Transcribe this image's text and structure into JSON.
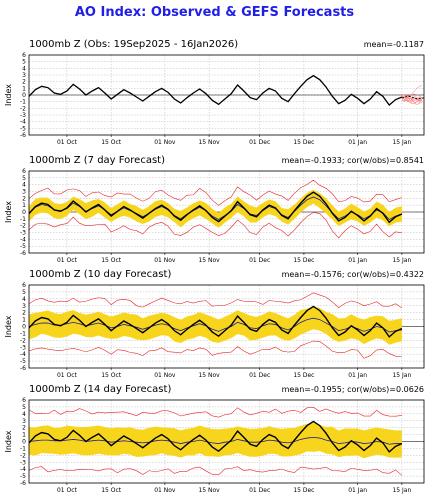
{
  "title": "AO Index: Observed & GEFS Forecasts",
  "colors": {
    "title": "#1f1fe6",
    "observed": "#000000",
    "spread": "#f7d51d",
    "bounds": "#e8242a",
    "members": "#ff6a6a",
    "mean": "#1f1f8f"
  },
  "chart_data": [
    {
      "type": "line",
      "panel_title": "1000mb Z (Obs: 19Sep2025 - 16Jan2026)",
      "stats": "mean=-0.1187",
      "ylabel": "Index",
      "ylim": [
        -6,
        6
      ],
      "yticks": [
        "6",
        "5",
        "4",
        "3",
        "2",
        "1",
        "0",
        "-1",
        "-2",
        "-3",
        "-4",
        "-5",
        "-6"
      ],
      "xlim": [
        0,
        125
      ],
      "xticks": [
        {
          "x": 12,
          "label": "01 Oct"
        },
        {
          "x": 26,
          "label": "15 Oct"
        },
        {
          "x": 43,
          "label": "01 Nov"
        },
        {
          "x": 57,
          "label": "15 Nov"
        },
        {
          "x": 73,
          "label": "01 Dec"
        },
        {
          "x": 87,
          "label": "15 Dec"
        },
        {
          "x": 104,
          "label": "01 Jan"
        },
        {
          "x": 118,
          "label": "15 Jan"
        }
      ],
      "grid": true,
      "observed": {
        "name": "observed",
        "x": [
          0,
          2,
          4,
          6,
          8,
          10,
          12,
          14,
          16,
          18,
          20,
          22,
          24,
          26,
          28,
          30,
          32,
          34,
          36,
          38,
          40,
          42,
          44,
          46,
          48,
          50,
          52,
          54,
          56,
          58,
          60,
          62,
          64,
          66,
          68,
          70,
          72,
          74,
          76,
          78,
          80,
          82,
          84,
          86,
          88,
          90,
          92,
          94,
          96,
          98,
          100,
          102,
          104,
          106,
          108,
          110,
          112,
          114,
          116,
          118
        ],
        "y": [
          -0.2,
          0.8,
          1.3,
          1.1,
          0.3,
          0.1,
          0.6,
          1.6,
          0.9,
          0.0,
          0.6,
          1.1,
          0.3,
          -0.6,
          0.1,
          0.8,
          0.3,
          -0.3,
          -0.9,
          -0.2,
          0.5,
          1.0,
          0.4,
          -0.6,
          -1.2,
          -0.4,
          0.3,
          0.9,
          0.2,
          -0.8,
          -1.4,
          -0.6,
          0.2,
          1.5,
          0.6,
          -0.4,
          -0.7,
          0.3,
          1.0,
          0.6,
          -0.5,
          -1.0,
          0.2,
          1.3,
          2.3,
          2.9,
          2.3,
          1.2,
          -0.2,
          -1.3,
          -0.8,
          0.1,
          -0.5,
          -1.3,
          -0.6,
          0.5,
          -0.2,
          -1.5,
          -0.7,
          -0.3
        ]
      },
      "forecast_members": {
        "name": "GEFS members",
        "x_start": 118,
        "x_end": 125,
        "spread": 1.8,
        "count": 10
      }
    },
    {
      "type": "line",
      "panel_title": "1000mb Z (7 day Forecast)",
      "stats": "mean=-0.1933; cor(w/obs)=0.8541",
      "ylabel": "Index",
      "ylim": [
        -6,
        6
      ],
      "yticks": [
        "6",
        "5",
        "4",
        "3",
        "2",
        "1",
        "0",
        "-1",
        "-2",
        "-3",
        "-4",
        "-5",
        "-6"
      ],
      "xlim": [
        0,
        125
      ],
      "xticks": [
        {
          "x": 12,
          "label": "01 Oct"
        },
        {
          "x": 26,
          "label": "15 Oct"
        },
        {
          "x": 43,
          "label": "01 Nov"
        },
        {
          "x": 57,
          "label": "15 Nov"
        },
        {
          "x": 73,
          "label": "01 Dec"
        },
        {
          "x": 87,
          "label": "15 Dec"
        },
        {
          "x": 104,
          "label": "01 Jan"
        },
        {
          "x": 118,
          "label": "15 Jan"
        }
      ],
      "grid": true,
      "x": [
        0,
        2,
        4,
        6,
        8,
        10,
        12,
        14,
        16,
        18,
        20,
        22,
        24,
        26,
        28,
        30,
        32,
        34,
        36,
        38,
        40,
        42,
        44,
        46,
        48,
        50,
        52,
        54,
        56,
        58,
        60,
        62,
        64,
        66,
        68,
        70,
        72,
        74,
        76,
        78,
        80,
        82,
        84,
        86,
        88,
        90,
        92,
        94,
        96,
        98,
        100,
        102,
        104,
        106,
        108,
        110,
        112,
        114,
        116,
        118
      ],
      "observed": [
        -0.2,
        0.8,
        1.3,
        1.1,
        0.3,
        0.1,
        0.6,
        1.6,
        0.9,
        0.0,
        0.6,
        1.1,
        0.3,
        -0.6,
        0.1,
        0.8,
        0.3,
        -0.3,
        -0.9,
        -0.2,
        0.5,
        1.0,
        0.4,
        -0.6,
        -1.2,
        -0.4,
        0.3,
        0.9,
        0.2,
        -0.8,
        -1.4,
        -0.6,
        0.2,
        1.5,
        0.6,
        -0.4,
        -0.7,
        0.3,
        1.0,
        0.6,
        -0.5,
        -1.0,
        0.2,
        1.3,
        2.3,
        2.9,
        2.3,
        1.2,
        -0.2,
        -1.3,
        -0.8,
        0.1,
        -0.5,
        -1.3,
        -0.6,
        0.5,
        -0.2,
        -1.5,
        -0.7,
        -0.3
      ],
      "forecast_mean": [
        -0.3,
        0.7,
        1.1,
        0.9,
        0.3,
        0.2,
        0.5,
        1.3,
        0.8,
        0.1,
        0.5,
        0.9,
        0.3,
        -0.4,
        0.1,
        0.6,
        0.2,
        -0.2,
        -0.7,
        -0.2,
        0.4,
        0.8,
        0.3,
        -0.5,
        -1.0,
        -0.3,
        0.2,
        0.7,
        0.2,
        -0.6,
        -1.1,
        -0.5,
        0.1,
        1.1,
        0.5,
        -0.3,
        -0.5,
        0.2,
        0.8,
        0.5,
        -0.4,
        -0.8,
        0.1,
        1.0,
        1.8,
        2.2,
        1.8,
        0.9,
        -0.1,
        -1.0,
        -0.6,
        0.0,
        -0.4,
        -1.0,
        -0.5,
        0.3,
        -0.1,
        -1.1,
        -0.6,
        -0.3
      ],
      "spread_halfwidth": 1.1,
      "bounds_halfwidth": 2.4
    },
    {
      "type": "line",
      "panel_title": "1000mb Z (10 day Forecast)",
      "stats": "mean=-0.1576; cor(w/obs)=0.4322",
      "ylabel": "Index",
      "ylim": [
        -6,
        6
      ],
      "yticks": [
        "6",
        "5",
        "4",
        "3",
        "2",
        "1",
        "0",
        "-1",
        "-2",
        "-3",
        "-4",
        "-5",
        "-6"
      ],
      "xlim": [
        0,
        125
      ],
      "xticks": [
        {
          "x": 12,
          "label": "01 Oct"
        },
        {
          "x": 26,
          "label": "15 Oct"
        },
        {
          "x": 43,
          "label": "01 Nov"
        },
        {
          "x": 57,
          "label": "15 Nov"
        },
        {
          "x": 73,
          "label": "01 Dec"
        },
        {
          "x": 87,
          "label": "15 Dec"
        },
        {
          "x": 104,
          "label": "01 Jan"
        },
        {
          "x": 118,
          "label": "15 Jan"
        }
      ],
      "grid": true,
      "x": [
        0,
        2,
        4,
        6,
        8,
        10,
        12,
        14,
        16,
        18,
        20,
        22,
        24,
        26,
        28,
        30,
        32,
        34,
        36,
        38,
        40,
        42,
        44,
        46,
        48,
        50,
        52,
        54,
        56,
        58,
        60,
        62,
        64,
        66,
        68,
        70,
        72,
        74,
        76,
        78,
        80,
        82,
        84,
        86,
        88,
        90,
        92,
        94,
        96,
        98,
        100,
        102,
        104,
        106,
        108,
        110,
        112,
        114,
        116,
        118
      ],
      "observed": [
        -0.2,
        0.8,
        1.3,
        1.1,
        0.3,
        0.1,
        0.6,
        1.6,
        0.9,
        0.0,
        0.6,
        1.1,
        0.3,
        -0.6,
        0.1,
        0.8,
        0.3,
        -0.3,
        -0.9,
        -0.2,
        0.5,
        1.0,
        0.4,
        -0.6,
        -1.2,
        -0.4,
        0.3,
        0.9,
        0.2,
        -0.8,
        -1.4,
        -0.6,
        0.2,
        1.5,
        0.6,
        -0.4,
        -0.7,
        0.3,
        1.0,
        0.6,
        -0.5,
        -1.0,
        0.2,
        1.3,
        2.3,
        2.9,
        2.3,
        1.2,
        -0.2,
        -1.3,
        -0.8,
        0.1,
        -0.5,
        -1.3,
        -0.6,
        0.5,
        -0.2,
        -1.5,
        -0.7,
        -0.3
      ],
      "forecast_mean": [
        0.0,
        0.3,
        0.5,
        0.5,
        0.2,
        0.2,
        0.4,
        0.6,
        0.4,
        0.1,
        0.3,
        0.5,
        0.2,
        -0.2,
        0.0,
        0.3,
        0.1,
        -0.1,
        -0.4,
        -0.1,
        0.2,
        0.4,
        0.2,
        -0.3,
        -0.6,
        -0.2,
        0.1,
        0.4,
        0.1,
        -0.4,
        -0.7,
        -0.3,
        0.0,
        0.6,
        0.3,
        -0.2,
        -0.3,
        0.1,
        0.4,
        0.3,
        -0.2,
        -0.5,
        0.0,
        0.6,
        1.0,
        1.2,
        1.0,
        0.5,
        0.0,
        -0.6,
        -0.4,
        0.0,
        -0.3,
        -0.7,
        -0.4,
        0.0,
        -0.2,
        -0.8,
        -0.6,
        -0.5
      ],
      "spread_halfwidth": 1.7,
      "bounds_halfwidth": 3.5
    },
    {
      "type": "line",
      "panel_title": "1000mb Z (14 day Forecast)",
      "stats": "mean=-0.1955; cor(w/obs)=0.0626",
      "ylabel": "Index",
      "ylim": [
        -6,
        6
      ],
      "yticks": [
        "6",
        "5",
        "4",
        "3",
        "2",
        "1",
        "0",
        "-1",
        "-2",
        "-3",
        "-4",
        "-5",
        "-6"
      ],
      "xlim": [
        0,
        125
      ],
      "xticks": [
        {
          "x": 12,
          "label": "01 Oct"
        },
        {
          "x": 26,
          "label": "15 Oct"
        },
        {
          "x": 43,
          "label": "01 Nov"
        },
        {
          "x": 57,
          "label": "15 Nov"
        },
        {
          "x": 73,
          "label": "01 Dec"
        },
        {
          "x": 87,
          "label": "15 Dec"
        },
        {
          "x": 104,
          "label": "01 Jan"
        },
        {
          "x": 118,
          "label": "15 Jan"
        }
      ],
      "grid": true,
      "x": [
        0,
        2,
        4,
        6,
        8,
        10,
        12,
        14,
        16,
        18,
        20,
        22,
        24,
        26,
        28,
        30,
        32,
        34,
        36,
        38,
        40,
        42,
        44,
        46,
        48,
        50,
        52,
        54,
        56,
        58,
        60,
        62,
        64,
        66,
        68,
        70,
        72,
        74,
        76,
        78,
        80,
        82,
        84,
        86,
        88,
        90,
        92,
        94,
        96,
        98,
        100,
        102,
        104,
        106,
        108,
        110,
        112,
        114,
        116,
        118
      ],
      "observed": [
        -0.2,
        0.8,
        1.3,
        1.1,
        0.3,
        0.1,
        0.6,
        1.6,
        0.9,
        0.0,
        0.6,
        1.1,
        0.3,
        -0.6,
        0.1,
        0.8,
        0.3,
        -0.3,
        -0.9,
        -0.2,
        0.5,
        1.0,
        0.4,
        -0.6,
        -1.2,
        -0.4,
        0.3,
        0.9,
        0.2,
        -0.8,
        -1.4,
        -0.6,
        0.2,
        1.5,
        0.6,
        -0.4,
        -0.7,
        0.3,
        1.0,
        0.6,
        -0.5,
        -1.0,
        0.2,
        1.3,
        2.3,
        2.9,
        2.3,
        1.2,
        -0.2,
        -1.3,
        -0.8,
        0.1,
        -0.5,
        -1.3,
        -0.6,
        0.5,
        -0.2,
        -1.5,
        -0.7,
        -0.3
      ],
      "forecast_mean": [
        0.0,
        0.1,
        0.2,
        0.2,
        0.1,
        0.1,
        0.2,
        0.3,
        0.2,
        0.0,
        0.1,
        0.2,
        0.1,
        -0.1,
        0.0,
        0.1,
        0.0,
        -0.1,
        -0.2,
        -0.1,
        0.1,
        0.2,
        0.1,
        -0.1,
        -0.3,
        -0.1,
        0.0,
        0.2,
        0.0,
        -0.2,
        -0.3,
        -0.1,
        0.0,
        0.3,
        0.1,
        -0.1,
        -0.1,
        0.0,
        0.2,
        0.1,
        -0.1,
        -0.2,
        0.0,
        0.3,
        0.5,
        0.6,
        0.5,
        0.2,
        0.0,
        -0.3,
        -0.2,
        0.0,
        -0.1,
        -0.3,
        -0.2,
        0.0,
        -0.1,
        -0.4,
        -0.3,
        -0.3
      ],
      "spread_halfwidth": 2.0,
      "bounds_halfwidth": 4.2
    }
  ]
}
